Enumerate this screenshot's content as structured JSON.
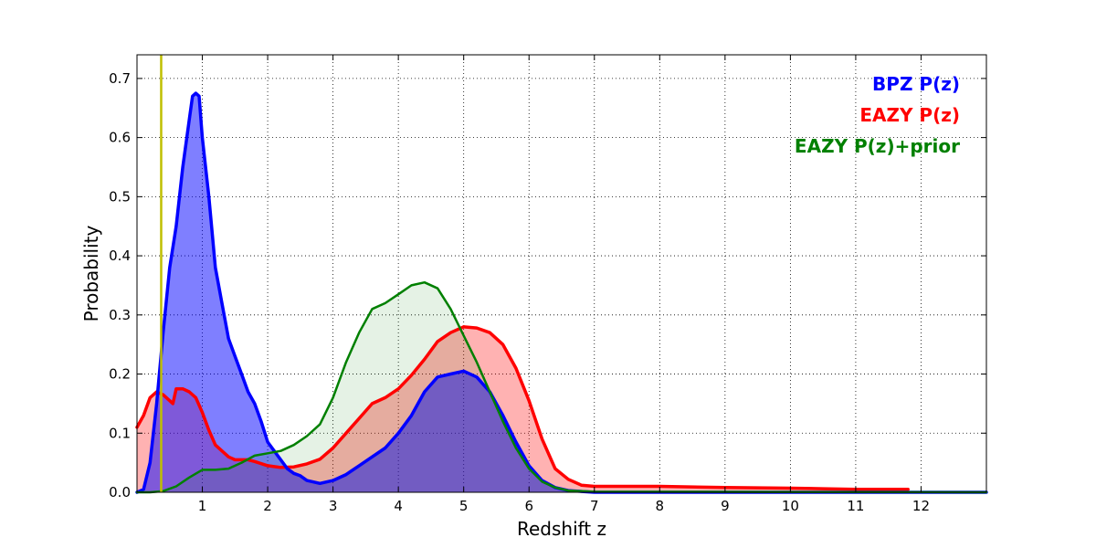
{
  "chart_data": {
    "type": "area",
    "title": "",
    "xlabel": "Redshift z",
    "ylabel": "Probability",
    "xlim": [
      0,
      13
    ],
    "ylim": [
      0,
      0.74
    ],
    "xticks": [
      1,
      2,
      3,
      4,
      5,
      6,
      7,
      8,
      9,
      10,
      11,
      12
    ],
    "yticks": [
      0.0,
      0.1,
      0.2,
      0.3,
      0.4,
      0.5,
      0.6,
      0.7
    ],
    "ytick_labels": [
      "0.0",
      "0.1",
      "0.2",
      "0.3",
      "0.4",
      "0.5",
      "0.6",
      "0.7"
    ],
    "grid": true,
    "legend_position": "top-right",
    "vline": {
      "x": 0.37,
      "color": "#bfbf00"
    },
    "series": [
      {
        "name": "EAZY P(z)",
        "color": "#ff0000",
        "fill": "#ff0000",
        "fill_opacity": 0.3,
        "line_width": 3.5,
        "points": [
          [
            0,
            0.11
          ],
          [
            0.1,
            0.13
          ],
          [
            0.2,
            0.16
          ],
          [
            0.3,
            0.17
          ],
          [
            0.4,
            0.165
          ],
          [
            0.5,
            0.155
          ],
          [
            0.55,
            0.15
          ],
          [
            0.6,
            0.175
          ],
          [
            0.7,
            0.175
          ],
          [
            0.8,
            0.17
          ],
          [
            0.9,
            0.16
          ],
          [
            1.0,
            0.135
          ],
          [
            1.1,
            0.105
          ],
          [
            1.2,
            0.08
          ],
          [
            1.3,
            0.07
          ],
          [
            1.4,
            0.06
          ],
          [
            1.5,
            0.055
          ],
          [
            1.6,
            0.055
          ],
          [
            1.7,
            0.055
          ],
          [
            1.8,
            0.052
          ],
          [
            2.0,
            0.045
          ],
          [
            2.2,
            0.042
          ],
          [
            2.4,
            0.043
          ],
          [
            2.6,
            0.048
          ],
          [
            2.8,
            0.056
          ],
          [
            3.0,
            0.075
          ],
          [
            3.2,
            0.1
          ],
          [
            3.4,
            0.125
          ],
          [
            3.6,
            0.15
          ],
          [
            3.8,
            0.16
          ],
          [
            4.0,
            0.175
          ],
          [
            4.2,
            0.198
          ],
          [
            4.4,
            0.225
          ],
          [
            4.6,
            0.255
          ],
          [
            4.8,
            0.27
          ],
          [
            5.0,
            0.28
          ],
          [
            5.2,
            0.278
          ],
          [
            5.4,
            0.27
          ],
          [
            5.6,
            0.25
          ],
          [
            5.8,
            0.21
          ],
          [
            6.0,
            0.155
          ],
          [
            6.2,
            0.09
          ],
          [
            6.4,
            0.04
          ],
          [
            6.6,
            0.022
          ],
          [
            6.8,
            0.012
          ],
          [
            7.0,
            0.01
          ],
          [
            8.0,
            0.01
          ],
          [
            9.0,
            0.008
          ],
          [
            10.0,
            0.007
          ],
          [
            10.5,
            0.006
          ],
          [
            11.0,
            0.005
          ],
          [
            11.8,
            0.005
          ]
        ]
      },
      {
        "name": "BPZ P(z)",
        "color": "#0000ff",
        "fill": "#0000ff",
        "fill_opacity": 0.5,
        "line_width": 3.5,
        "points": [
          [
            0,
            0
          ],
          [
            0.1,
            0.005
          ],
          [
            0.2,
            0.05
          ],
          [
            0.3,
            0.15
          ],
          [
            0.4,
            0.27
          ],
          [
            0.5,
            0.38
          ],
          [
            0.6,
            0.45
          ],
          [
            0.7,
            0.55
          ],
          [
            0.8,
            0.63
          ],
          [
            0.85,
            0.67
          ],
          [
            0.9,
            0.675
          ],
          [
            0.95,
            0.67
          ],
          [
            1.0,
            0.6
          ],
          [
            1.1,
            0.5
          ],
          [
            1.2,
            0.38
          ],
          [
            1.3,
            0.32
          ],
          [
            1.4,
            0.26
          ],
          [
            1.5,
            0.23
          ],
          [
            1.6,
            0.2
          ],
          [
            1.7,
            0.17
          ],
          [
            1.8,
            0.15
          ],
          [
            1.9,
            0.12
          ],
          [
            2.0,
            0.085
          ],
          [
            2.1,
            0.07
          ],
          [
            2.2,
            0.055
          ],
          [
            2.3,
            0.04
          ],
          [
            2.4,
            0.032
          ],
          [
            2.5,
            0.028
          ],
          [
            2.6,
            0.02
          ],
          [
            2.8,
            0.015
          ],
          [
            3.0,
            0.02
          ],
          [
            3.2,
            0.03
          ],
          [
            3.4,
            0.045
          ],
          [
            3.6,
            0.06
          ],
          [
            3.8,
            0.075
          ],
          [
            4.0,
            0.1
          ],
          [
            4.2,
            0.13
          ],
          [
            4.4,
            0.17
          ],
          [
            4.6,
            0.195
          ],
          [
            4.8,
            0.2
          ],
          [
            5.0,
            0.205
          ],
          [
            5.2,
            0.195
          ],
          [
            5.4,
            0.17
          ],
          [
            5.6,
            0.13
          ],
          [
            5.8,
            0.085
          ],
          [
            6.0,
            0.045
          ],
          [
            6.2,
            0.02
          ],
          [
            6.4,
            0.008
          ],
          [
            6.6,
            0.003
          ],
          [
            7.0,
            0.0
          ],
          [
            13.0,
            0.0
          ]
        ]
      },
      {
        "name": "EAZY P(z)+prior",
        "color": "#008000",
        "fill": "#008000",
        "fill_opacity": 0.1,
        "line_width": 2.5,
        "points": [
          [
            0,
            0
          ],
          [
            0.2,
            0
          ],
          [
            0.4,
            0.002
          ],
          [
            0.6,
            0.01
          ],
          [
            0.8,
            0.025
          ],
          [
            1.0,
            0.038
          ],
          [
            1.2,
            0.038
          ],
          [
            1.4,
            0.04
          ],
          [
            1.6,
            0.05
          ],
          [
            1.8,
            0.062
          ],
          [
            2.0,
            0.066
          ],
          [
            2.2,
            0.07
          ],
          [
            2.4,
            0.08
          ],
          [
            2.6,
            0.095
          ],
          [
            2.8,
            0.115
          ],
          [
            3.0,
            0.16
          ],
          [
            3.2,
            0.22
          ],
          [
            3.4,
            0.27
          ],
          [
            3.6,
            0.31
          ],
          [
            3.8,
            0.32
          ],
          [
            4.0,
            0.335
          ],
          [
            4.2,
            0.35
          ],
          [
            4.4,
            0.355
          ],
          [
            4.6,
            0.345
          ],
          [
            4.8,
            0.31
          ],
          [
            5.0,
            0.265
          ],
          [
            5.2,
            0.22
          ],
          [
            5.4,
            0.17
          ],
          [
            5.6,
            0.12
          ],
          [
            5.8,
            0.075
          ],
          [
            6.0,
            0.04
          ],
          [
            6.2,
            0.018
          ],
          [
            6.4,
            0.008
          ],
          [
            6.6,
            0.003
          ],
          [
            7.0,
            0.001
          ],
          [
            13.0,
            0.0
          ]
        ]
      }
    ]
  },
  "legend": [
    {
      "label": "BPZ P(z)",
      "color": "#0000ff"
    },
    {
      "label": "EAZY P(z)",
      "color": "#ff0000"
    },
    {
      "label": "EAZY P(z)+prior",
      "color": "#008000"
    }
  ]
}
